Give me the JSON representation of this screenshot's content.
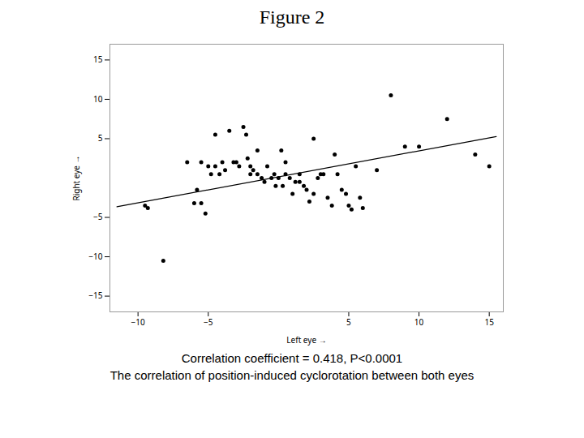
{
  "chart_data": {
    "type": "scatter",
    "title": "Figure 2",
    "x_label": "Left eye",
    "y_label": "Right eye",
    "xlim": [
      -12,
      16
    ],
    "ylim": [
      -17,
      17
    ],
    "xticks": [
      -10,
      -5,
      5,
      10,
      15
    ],
    "yticks": [
      -15,
      -10,
      -5,
      5,
      10,
      15
    ],
    "grid": false,
    "annotations": [
      "Correlation coefficient = 0.418, P<0.0001",
      "The correlation of position-induced cyclorotation between both eyes"
    ],
    "series": [
      {
        "type": "scatter",
        "color": "#000000",
        "x": [
          -9.5,
          -9.3,
          -8.2,
          -6.5,
          -6.0,
          -5.8,
          -5.5,
          -5.5,
          -5.2,
          -5.0,
          -4.8,
          -4.5,
          -4.5,
          -4.2,
          -4.0,
          -3.8,
          -3.5,
          -3.2,
          -3.0,
          -2.8,
          -2.5,
          -2.3,
          -2.2,
          -2.0,
          -2.0,
          -1.8,
          -1.5,
          -1.5,
          -1.2,
          -1.0,
          -0.8,
          -0.5,
          -0.3,
          -0.2,
          0.0,
          0.2,
          0.3,
          0.5,
          0.5,
          0.8,
          1.0,
          1.2,
          1.5,
          1.5,
          1.8,
          2.0,
          2.2,
          2.5,
          2.5,
          2.8,
          3.0,
          3.2,
          3.5,
          3.8,
          4.0,
          4.2,
          4.5,
          4.8,
          5.0,
          5.2,
          5.5,
          5.8,
          6.0,
          7.0,
          8.0,
          9.0,
          10.0,
          12.0,
          14.0,
          15.0
        ],
        "values": [
          -3.5,
          -3.8,
          -10.5,
          2.0,
          -3.2,
          -1.5,
          -3.2,
          2.0,
          -4.5,
          1.5,
          0.5,
          1.5,
          5.5,
          0.5,
          2.0,
          1.0,
          6.0,
          2.0,
          2.0,
          1.5,
          6.5,
          5.5,
          2.5,
          0.5,
          1.5,
          1.0,
          0.5,
          3.5,
          0.0,
          -0.5,
          1.5,
          0.0,
          0.5,
          -1.0,
          0.0,
          3.5,
          -1.0,
          2.0,
          0.5,
          0.0,
          -2.0,
          -0.5,
          0.5,
          -0.5,
          -1.0,
          -1.5,
          -3.0,
          5.0,
          -2.0,
          0.0,
          0.5,
          0.5,
          -2.5,
          -3.5,
          3.0,
          0.5,
          -1.5,
          -2.0,
          -3.5,
          -4.0,
          1.5,
          -2.5,
          -3.8,
          1.0,
          10.5,
          4.0,
          4.0,
          7.5,
          3.0,
          1.5
        ]
      },
      {
        "type": "line",
        "color": "#000000",
        "x": [
          -11.5,
          15.5
        ],
        "values": [
          -3.645,
          5.265
        ]
      }
    ]
  }
}
